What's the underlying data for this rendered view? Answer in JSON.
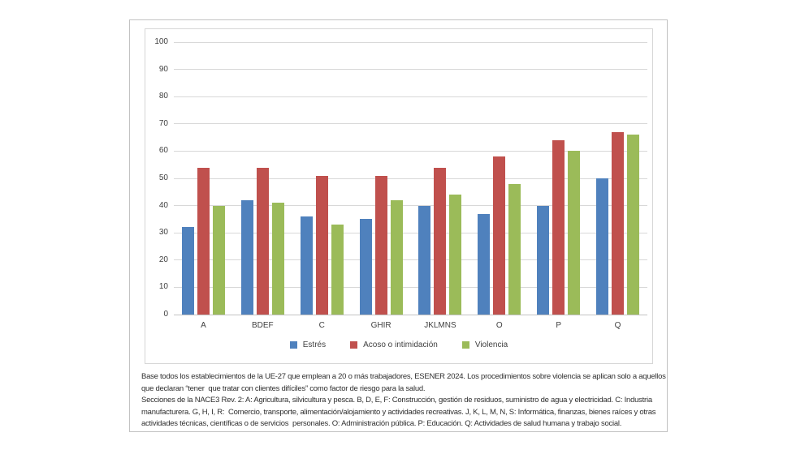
{
  "chart_data": {
    "type": "bar",
    "title": "",
    "xlabel": "",
    "ylabel": "",
    "categories": [
      "A",
      "BDEF",
      "C",
      "GHIR",
      "JKLMNS",
      "O",
      "P",
      "Q"
    ],
    "series": [
      {
        "name": "Estrés",
        "color": "#4f81bd",
        "values": [
          32,
          42,
          36,
          35,
          40,
          37,
          40,
          50
        ]
      },
      {
        "name": "Acoso o intimidación",
        "color": "#c0504d",
        "values": [
          54,
          54,
          51,
          51,
          54,
          58,
          64,
          67
        ]
      },
      {
        "name": "Violencia",
        "color": "#9bbb59",
        "values": [
          40,
          41,
          33,
          42,
          44,
          48,
          60,
          66
        ]
      }
    ],
    "ylim": [
      0,
      100
    ],
    "ytick_step": 10,
    "grid": true,
    "legend_position": "bottom"
  },
  "colors": {
    "page_border": "#c2c2c2",
    "chart_border": "#d6d6d6",
    "grid": "#d8d8d8",
    "baseline": "#c3c3c3",
    "tick_text": "#3f3f3f",
    "footnote_text": "#2f2f2f"
  },
  "footnotes": {
    "lines": [
      "Base todos los establecimientos de la UE-27 que emplean a 20 o más trabajadores, ESENER 2024. Los procedimientos sobre violencia se aplican solo a aquellos",
      "que declaran “tener  que tratar con clientes difíciles” como factor de riesgo para la salud.",
      "Secciones de la NACE3 Rev. 2: A: Agricultura, silvicultura y pesca. B, D, E, F: Construcción, gestión de residuos, suministro de agua y electricidad. C: Industria",
      "manufacturera. G, H, I, R:  Comercio, transporte, alimentación/alojamiento y actividades recreativas. J, K, L, M, N, S: Informática, finanzas, bienes raíces y otras",
      "actividades técnicas, científicas o de servicios  personales. O: Administración pública. P: Educación. Q: Actividades de salud humana y trabajo social."
    ]
  }
}
